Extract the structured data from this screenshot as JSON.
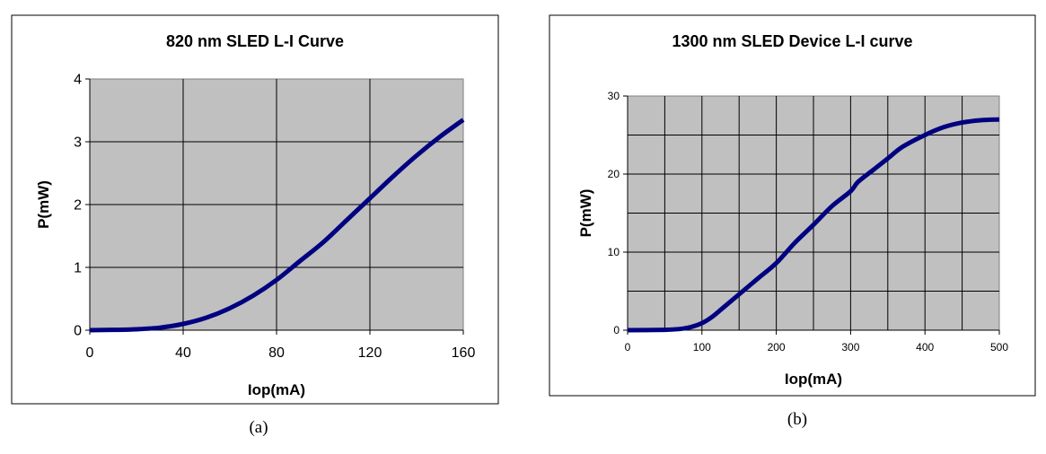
{
  "chart_data": [
    {
      "type": "line",
      "title": "820 nm SLED L-I Curve",
      "xlabel": "Iop(mA)",
      "ylabel": "P(mW)",
      "xlim": [
        0,
        160
      ],
      "ylim": [
        0,
        4
      ],
      "xticks": [
        0,
        40,
        80,
        120,
        160
      ],
      "yticks": [
        0,
        1,
        2,
        3,
        4
      ],
      "grid": true,
      "caption": "(a)",
      "line_color": "#000080",
      "plot_bg": "#c0c0c0",
      "x": [
        0,
        10,
        20,
        30,
        40,
        50,
        60,
        70,
        80,
        90,
        100,
        110,
        120,
        130,
        140,
        150,
        160
      ],
      "y": [
        0,
        0.005,
        0.015,
        0.04,
        0.1,
        0.2,
        0.35,
        0.55,
        0.8,
        1.1,
        1.4,
        1.75,
        2.1,
        2.45,
        2.78,
        3.08,
        3.35
      ]
    },
    {
      "type": "line",
      "title": "1300 nm SLED Device L-I curve",
      "xlabel": "Iop(mA)",
      "ylabel": "P(mW)",
      "xlim": [
        0,
        500
      ],
      "ylim": [
        0,
        30
      ],
      "xticks": [
        0,
        100,
        200,
        300,
        400,
        500
      ],
      "yticks": [
        0,
        10,
        20,
        30
      ],
      "xgrid_step": 50,
      "ygrid_step": 5,
      "grid": true,
      "caption": "(b)",
      "line_color": "#000080",
      "plot_bg": "#c0c0c0",
      "x": [
        0,
        50,
        70,
        85,
        100,
        115,
        130,
        150,
        175,
        200,
        225,
        250,
        275,
        300,
        310,
        330,
        350,
        370,
        400,
        425,
        450,
        475,
        500
      ],
      "y": [
        0,
        0.05,
        0.15,
        0.4,
        0.9,
        1.8,
        3,
        4.6,
        6.6,
        8.6,
        11.2,
        13.5,
        15.9,
        17.8,
        19,
        20.5,
        22,
        23.5,
        25,
        26,
        26.6,
        26.9,
        27
      ]
    }
  ]
}
